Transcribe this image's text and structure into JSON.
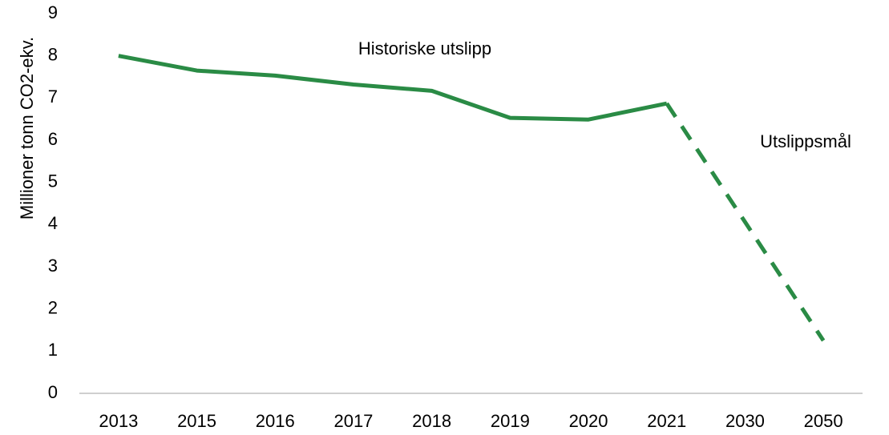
{
  "chart_data": {
    "type": "line",
    "y_label": "Millioner tonn CO2-ekv.",
    "categories": [
      "2013",
      "2015",
      "2016",
      "2017",
      "2018",
      "2019",
      "2020",
      "2021",
      "2030",
      "2050"
    ],
    "series": [
      {
        "name": "Historiske utslipp",
        "color": "#2a8b45",
        "dashed": false,
        "values": [
          8.0,
          7.65,
          7.53,
          7.32,
          7.17,
          6.53,
          6.49,
          6.87,
          null,
          null
        ]
      },
      {
        "name": "Utslippsmål",
        "color": "#2a8b45",
        "dashed": true,
        "values": [
          null,
          null,
          null,
          null,
          null,
          null,
          null,
          6.87,
          4.06,
          1.25
        ]
      }
    ],
    "ylim": [
      0,
      9
    ],
    "yticks": [
      0,
      1,
      2,
      3,
      4,
      5,
      6,
      7,
      8,
      9
    ],
    "grid": false
  }
}
